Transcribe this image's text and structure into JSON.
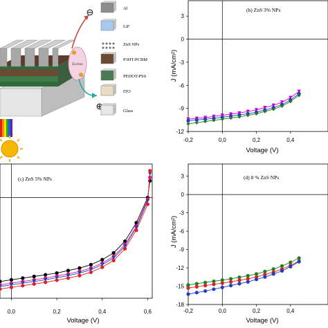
{
  "device": {
    "layers": [
      {
        "label": "Al",
        "color": "#8c8c8c"
      },
      {
        "label": "LiF",
        "color": "#a9c8ee"
      },
      {
        "label": "ZnS NPs",
        "color": "#6e6e6e"
      },
      {
        "label": "P3HT:PCBM",
        "color": "#6b4a33"
      },
      {
        "label": "PEDOT:PSS",
        "color": "#4c7a55"
      },
      {
        "label": "ITO",
        "color": "#e9dcc0"
      },
      {
        "label": "Glass",
        "color": "#e8e8e8"
      }
    ],
    "exciton_label": "Exciton",
    "minus_symbol": "⊖",
    "plus_symbol": "⊕"
  },
  "chart_data": [
    {
      "type": "line",
      "id": "b",
      "annotation": "(b) ZnS 3% NPs",
      "xlabel": "Voltage (V)",
      "ylabel": "J (mA/cm²)",
      "xlim": [
        -0.2,
        0.62
      ],
      "ylim": [
        -12,
        5
      ],
      "x_ticks": [
        "-0,2",
        "0,0",
        "0,2",
        "0,4"
      ],
      "x_tick_values": [
        -0.2,
        0.0,
        0.2,
        0.4
      ],
      "y_ticks": [
        "3",
        "0",
        "-3",
        "-6",
        "-9",
        "-12"
      ],
      "y_tick_values": [
        3,
        0,
        -3,
        -6,
        -9,
        -12
      ],
      "series": [
        {
          "color": "#cc00cc",
          "marker": "triangle-down",
          "x": [
            -0.2,
            -0.15,
            -0.1,
            -0.05,
            0,
            0.05,
            0.1,
            0.15,
            0.2,
            0.25,
            0.3,
            0.35,
            0.4,
            0.45
          ],
          "y": [
            -10.4,
            -10.3,
            -10.2,
            -10.05,
            -9.9,
            -9.75,
            -9.6,
            -9.4,
            -9.2,
            -8.9,
            -8.6,
            -8.2,
            -7.6,
            -6.8
          ]
        },
        {
          "color": "#1f3fbf",
          "marker": "circle",
          "x": [
            -0.2,
            -0.15,
            -0.1,
            -0.05,
            0,
            0.05,
            0.1,
            0.15,
            0.2,
            0.25,
            0.3,
            0.35,
            0.4,
            0.45
          ],
          "y": [
            -10.6,
            -10.5,
            -10.4,
            -10.3,
            -10.15,
            -10.0,
            -9.85,
            -9.7,
            -9.5,
            -9.2,
            -8.9,
            -8.5,
            -7.9,
            -7.1
          ]
        },
        {
          "color": "#1f7f1f",
          "marker": "diamond",
          "x": [
            -0.2,
            -0.15,
            -0.1,
            -0.05,
            0,
            0.05,
            0.1,
            0.15,
            0.2,
            0.25,
            0.3,
            0.35,
            0.4,
            0.45
          ],
          "y": [
            -11.0,
            -10.85,
            -10.7,
            -10.55,
            -10.4,
            -10.25,
            -10.1,
            -9.9,
            -9.7,
            -9.4,
            -9.1,
            -8.7,
            -8.1,
            -7.3
          ]
        }
      ]
    },
    {
      "type": "line",
      "id": "c",
      "annotation": "(c) ZnS 5% NPs",
      "xlabel": "Voltage (V)",
      "ylabel": "",
      "xlim": [
        -0.05,
        0.62
      ],
      "ylim": [
        -12,
        4
      ],
      "x_ticks": [
        "0,0",
        "0,2",
        "0,4",
        "0,6"
      ],
      "x_tick_values": [
        0.0,
        0.2,
        0.4,
        0.6
      ],
      "y_ticks": [],
      "y_tick_values": [],
      "series": [
        {
          "color": "#000000",
          "marker": "circle",
          "x": [
            -0.05,
            0,
            0.05,
            0.1,
            0.15,
            0.2,
            0.25,
            0.3,
            0.35,
            0.4,
            0.45,
            0.5,
            0.55,
            0.6,
            0.61
          ],
          "y": [
            -10.0,
            -9.8,
            -9.6,
            -9.4,
            -9.2,
            -9.0,
            -8.7,
            -8.4,
            -8.0,
            -7.4,
            -6.6,
            -5.2,
            -3.0,
            0.0,
            2.0
          ]
        },
        {
          "color": "#d81b8c",
          "marker": "circle",
          "x": [
            -0.05,
            0,
            0.05,
            0.1,
            0.15,
            0.2,
            0.25,
            0.3,
            0.35,
            0.4,
            0.45,
            0.5,
            0.55,
            0.6,
            0.61
          ],
          "y": [
            -10.4,
            -10.2,
            -10.0,
            -9.8,
            -9.6,
            -9.35,
            -9.1,
            -8.8,
            -8.4,
            -7.8,
            -7.0,
            -5.6,
            -3.4,
            -0.2,
            2.4
          ]
        },
        {
          "color": "#1f3fbf",
          "marker": "triangle-down",
          "x": [
            -0.05,
            0,
            0.05,
            0.1,
            0.15,
            0.2,
            0.25,
            0.3,
            0.35,
            0.4,
            0.45,
            0.5,
            0.55,
            0.6,
            0.61
          ],
          "y": [
            -10.6,
            -10.4,
            -10.2,
            -10.0,
            -9.8,
            -9.55,
            -9.3,
            -9.0,
            -8.6,
            -8.0,
            -7.2,
            -5.8,
            -3.6,
            -0.4,
            2.8
          ]
        },
        {
          "color": "#e02020",
          "marker": "circle",
          "x": [
            -0.05,
            0,
            0.05,
            0.1,
            0.15,
            0.2,
            0.25,
            0.3,
            0.35,
            0.4,
            0.45,
            0.5,
            0.55,
            0.6,
            0.61
          ],
          "y": [
            -10.9,
            -10.7,
            -10.5,
            -10.3,
            -10.1,
            -9.85,
            -9.6,
            -9.3,
            -8.9,
            -8.3,
            -7.5,
            -6.1,
            -3.9,
            -0.8,
            3.2
          ]
        }
      ]
    },
    {
      "type": "line",
      "id": "d",
      "annotation": "(d) 8 % ZnS NPs",
      "xlabel": "Voltage (V)",
      "ylabel": "J (mA/cm²)",
      "xlim": [
        -0.2,
        0.62
      ],
      "ylim": [
        -18,
        5
      ],
      "x_ticks": [
        "-0,2",
        "0,0",
        "0,2",
        "0,4"
      ],
      "x_tick_values": [
        -0.2,
        0.0,
        0.2,
        0.4
      ],
      "y_ticks": [
        "3",
        "0",
        "-3",
        "-6",
        "-9",
        "-12",
        "-15",
        "-18"
      ],
      "y_tick_values": [
        3,
        0,
        -3,
        -6,
        -9,
        -12,
        -15,
        -18
      ],
      "series": [
        {
          "color": "#1f7f1f",
          "marker": "circle",
          "x": [
            -0.2,
            -0.15,
            -0.1,
            -0.05,
            0,
            0.05,
            0.1,
            0.15,
            0.2,
            0.25,
            0.3,
            0.35,
            0.4,
            0.45
          ],
          "y": [
            -14.8,
            -14.6,
            -14.4,
            -14.2,
            -14.0,
            -13.8,
            -13.55,
            -13.3,
            -13.0,
            -12.6,
            -12.2,
            -11.7,
            -11.1,
            -10.4
          ]
        },
        {
          "color": "#e02020",
          "marker": "circle",
          "x": [
            -0.2,
            -0.15,
            -0.1,
            -0.05,
            0,
            0.05,
            0.1,
            0.15,
            0.2,
            0.25,
            0.3,
            0.35,
            0.4,
            0.45
          ],
          "y": [
            -15.3,
            -15.1,
            -14.9,
            -14.7,
            -14.5,
            -14.3,
            -14.05,
            -13.8,
            -13.5,
            -13.1,
            -12.7,
            -12.2,
            -11.6,
            -10.9
          ]
        },
        {
          "color": "#1f3fbf",
          "marker": "circle",
          "x": [
            -0.2,
            -0.15,
            -0.1,
            -0.05,
            0,
            0.05,
            0.1,
            0.15,
            0.2,
            0.25,
            0.3,
            0.35,
            0.4,
            0.45
          ],
          "y": [
            -16.3,
            -16.05,
            -15.8,
            -15.5,
            -15.2,
            -14.9,
            -14.6,
            -14.3,
            -13.9,
            -13.5,
            -13.0,
            -12.5,
            -11.8,
            -11.0
          ]
        }
      ]
    }
  ]
}
